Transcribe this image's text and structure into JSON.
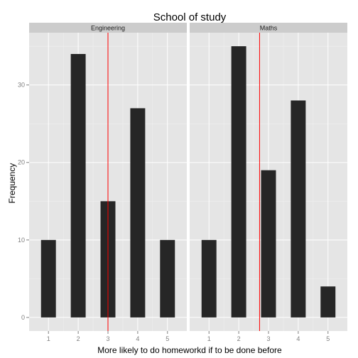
{
  "chart_data": {
    "type": "bar",
    "title": "School of study",
    "xlabel": "More likely to do homeworkd if to be done before",
    "ylabel": "Frequency",
    "x_ticks": [
      1,
      2,
      3,
      4,
      5
    ],
    "y_ticks": [
      0,
      10,
      20,
      30
    ],
    "xlim": [
      0.35,
      5.65
    ],
    "ylim": [
      -1.75,
      36.75
    ],
    "grid": true,
    "colors": {
      "bar": "#262626",
      "mean_line": "#ff0000",
      "panel_bg": "#e5e5e5",
      "strip_bg": "#cccccc",
      "grid": "#ffffff"
    },
    "panels": [
      {
        "name": "Engineering",
        "categories": [
          1,
          2,
          3,
          4,
          5
        ],
        "values": [
          10,
          34,
          15,
          27,
          10
        ],
        "mean": 3.0
      },
      {
        "name": "Maths",
        "categories": [
          1,
          2,
          3,
          4,
          5
        ],
        "values": [
          10,
          35,
          19,
          28,
          4
        ],
        "mean": 2.7
      }
    ]
  }
}
